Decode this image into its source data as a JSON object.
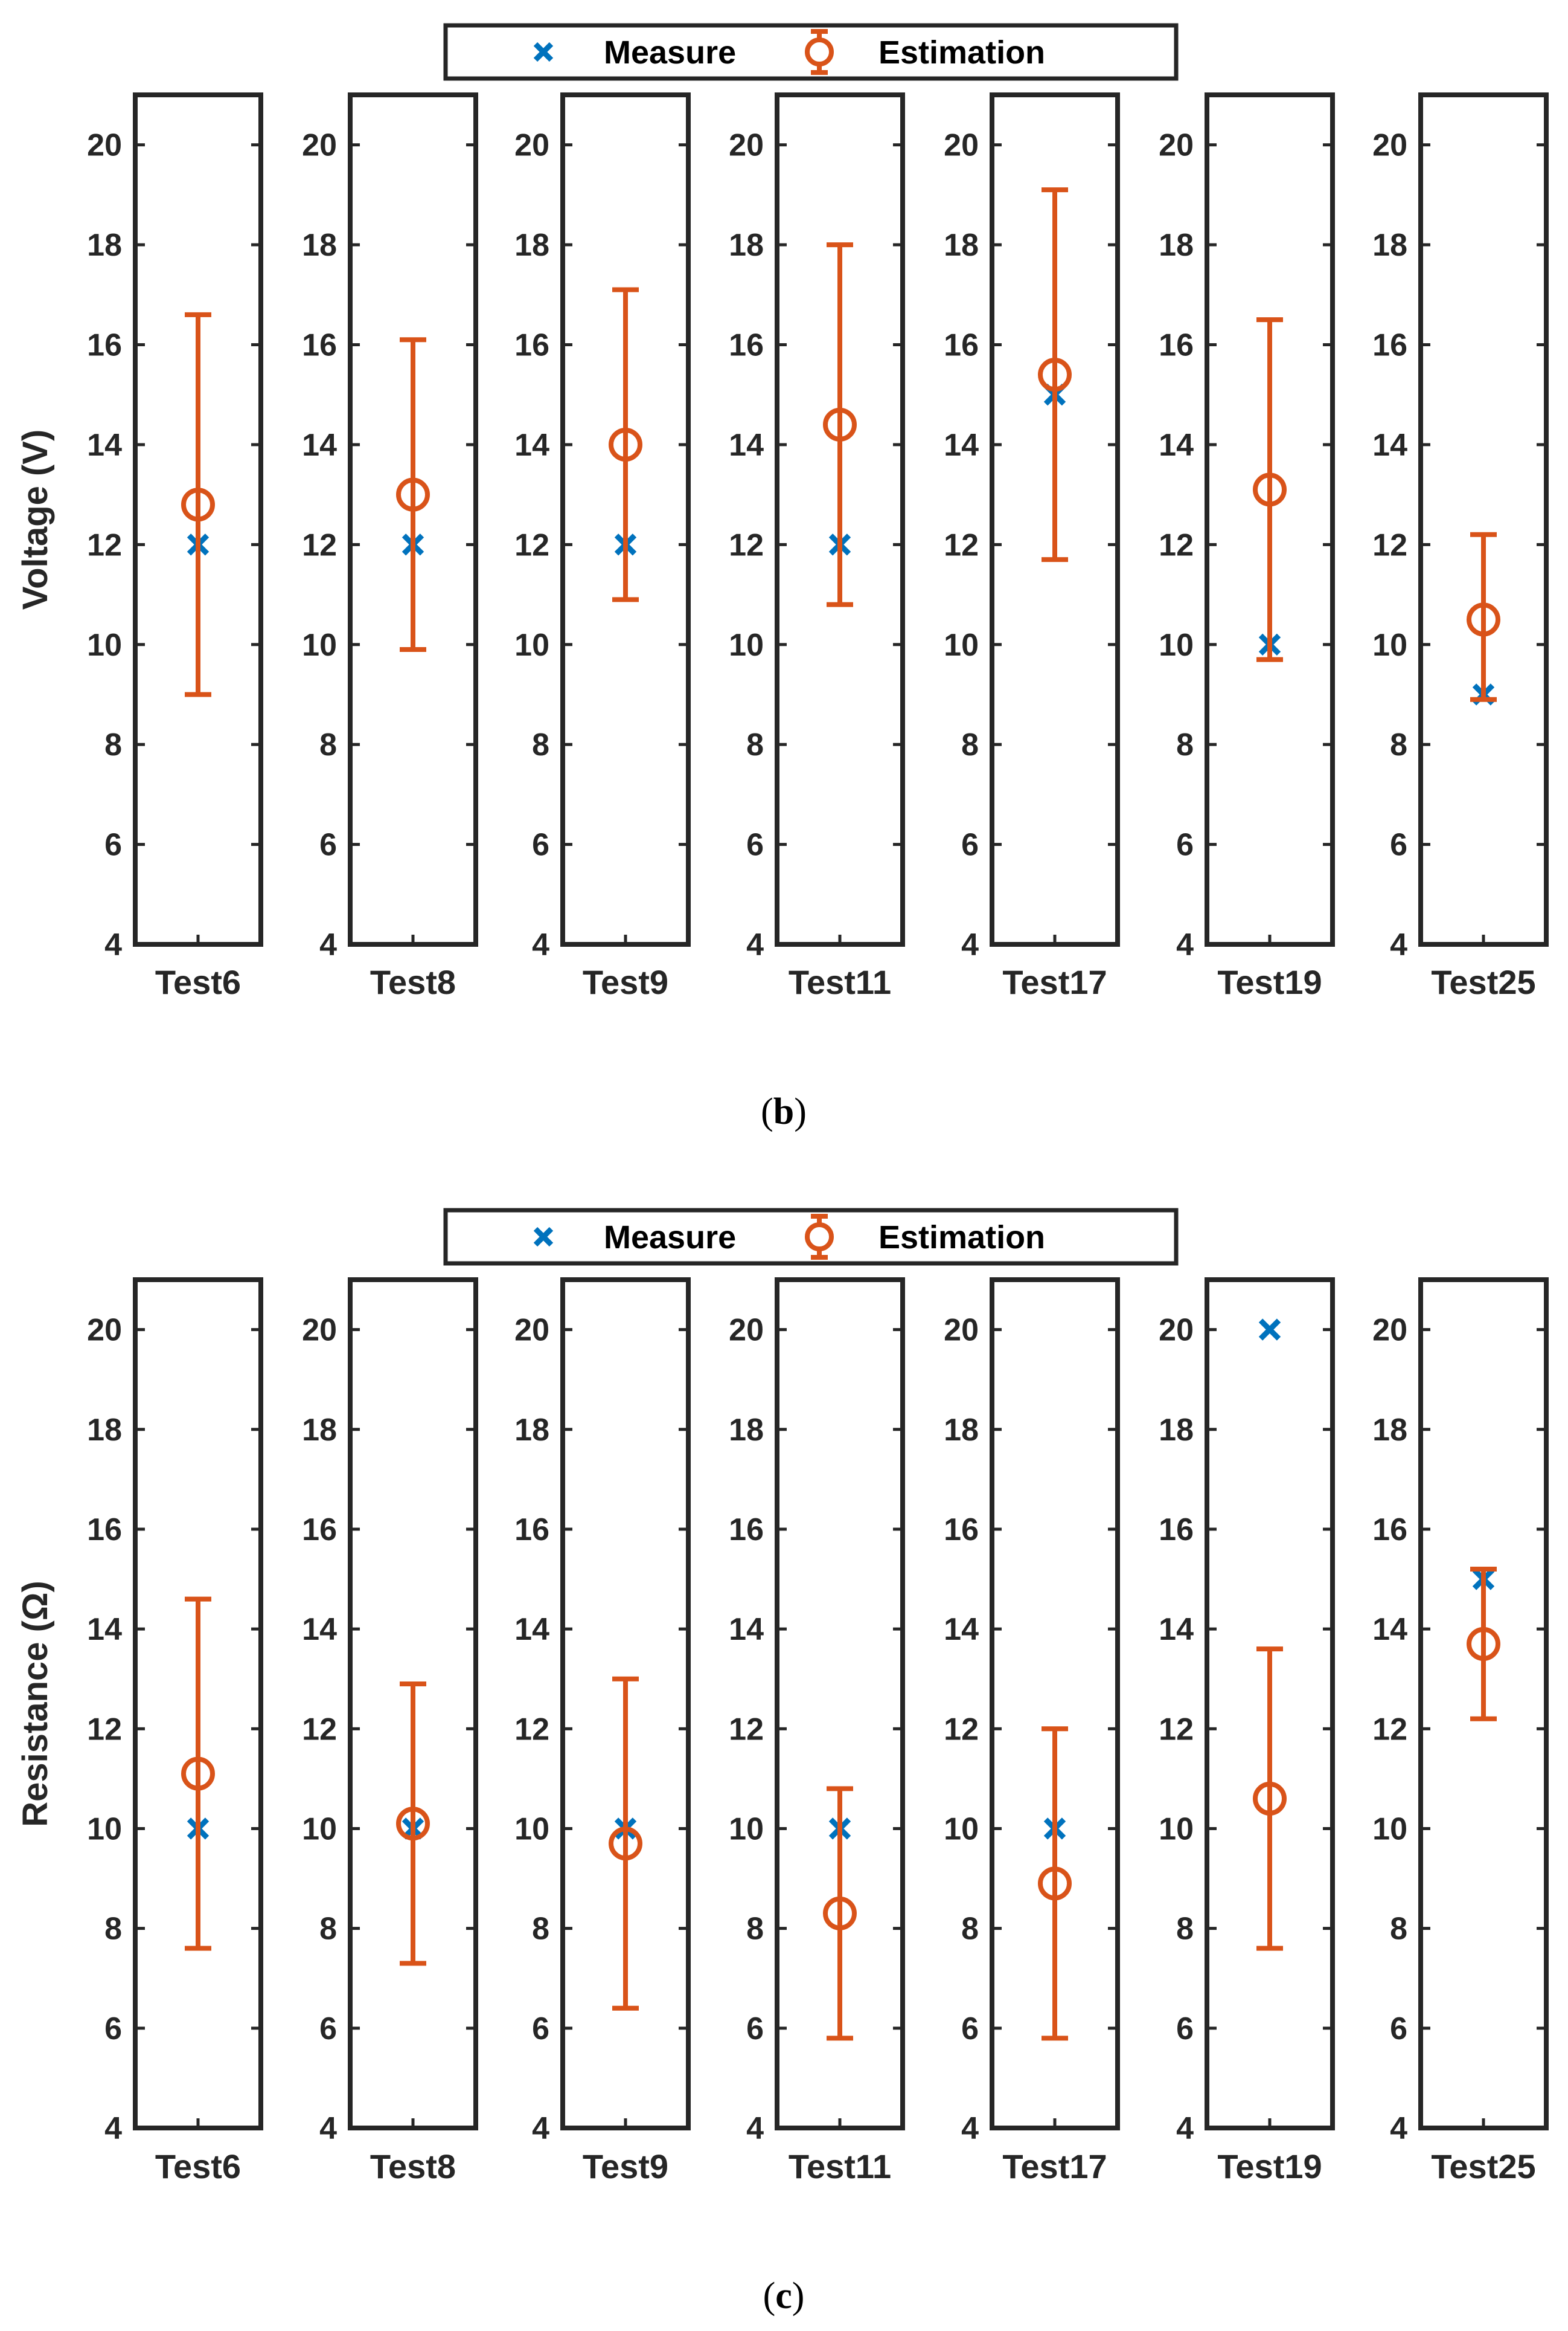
{
  "colors": {
    "measure": "#0072BD",
    "estimation": "#D95319",
    "axes": "#262626"
  },
  "legend": {
    "measure_label": "Measure",
    "estimation_label": "Estimation"
  },
  "chart_data": [
    {
      "type": "scatter",
      "caption_letter": "b",
      "ylabel": "Voltage (V)",
      "ylim": [
        4,
        21
      ],
      "yticks": [
        4,
        6,
        8,
        10,
        12,
        14,
        16,
        18,
        20
      ],
      "categories": [
        "Test6",
        "Test8",
        "Test9",
        "Test11",
        "Test17",
        "Test19",
        "Test25"
      ],
      "series": [
        {
          "name": "Measure",
          "marker": "x",
          "values": [
            12,
            12,
            12,
            12,
            15,
            10,
            9
          ]
        },
        {
          "name": "Estimation",
          "marker": "o",
          "values": [
            12.8,
            13.0,
            14.0,
            14.4,
            15.4,
            13.1,
            10.5
          ],
          "lower": [
            9.0,
            9.9,
            10.9,
            10.8,
            11.7,
            9.7,
            8.9
          ],
          "upper": [
            16.6,
            16.1,
            17.1,
            18.0,
            19.1,
            16.5,
            12.2
          ]
        }
      ]
    },
    {
      "type": "scatter",
      "caption_letter": "c",
      "ylabel": "Resistance (Ω)",
      "ylim": [
        4,
        21
      ],
      "yticks": [
        4,
        6,
        8,
        10,
        12,
        14,
        16,
        18,
        20
      ],
      "categories": [
        "Test6",
        "Test8",
        "Test9",
        "Test11",
        "Test17",
        "Test19",
        "Test25"
      ],
      "series": [
        {
          "name": "Measure",
          "marker": "x",
          "values": [
            10,
            10,
            10,
            10,
            10,
            20,
            15
          ]
        },
        {
          "name": "Estimation",
          "marker": "o",
          "values": [
            11.1,
            10.1,
            9.7,
            8.3,
            8.9,
            10.6,
            13.7
          ],
          "lower": [
            7.6,
            7.3,
            6.4,
            5.8,
            5.8,
            7.6,
            12.2
          ],
          "upper": [
            14.6,
            12.9,
            13.0,
            10.8,
            12.0,
            13.6,
            15.2
          ]
        }
      ]
    }
  ]
}
